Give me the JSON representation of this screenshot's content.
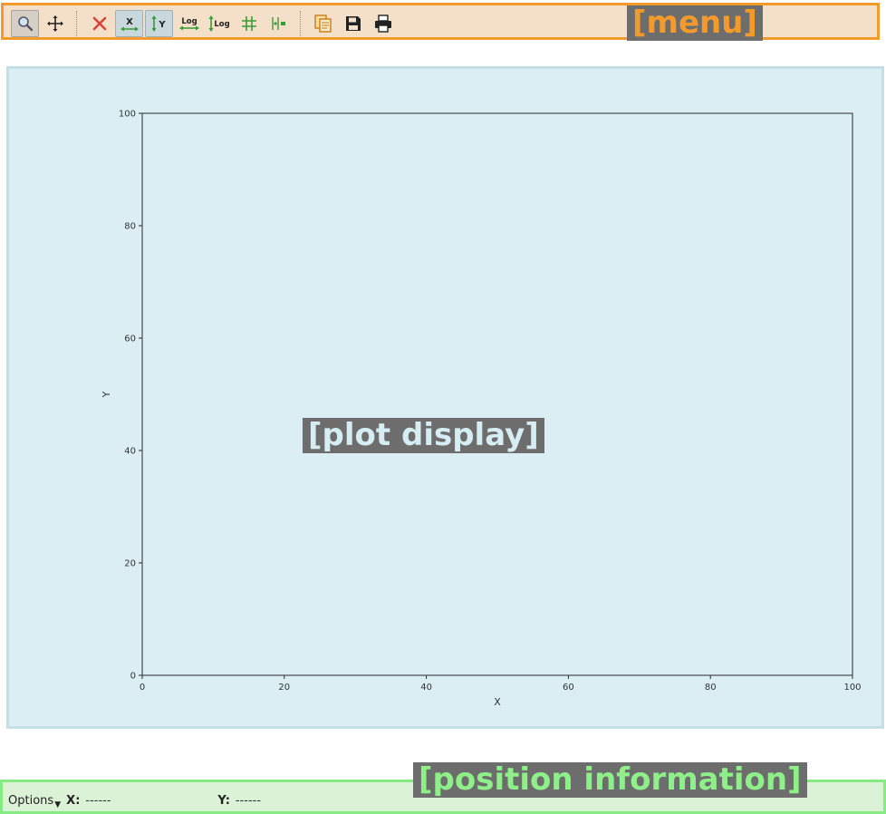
{
  "menu": {
    "overlay_label": "[menu]",
    "tools": [
      {
        "name": "zoom-icon",
        "active": true
      },
      {
        "name": "pan-icon",
        "active": false
      },
      {
        "name": "reset-zoom-icon",
        "active": false
      },
      {
        "name": "autoscale-x-icon",
        "active": true
      },
      {
        "name": "autoscale-y-icon",
        "active": true
      },
      {
        "name": "log-x-icon",
        "active": false
      },
      {
        "name": "log-y-icon",
        "active": false
      },
      {
        "name": "grid-icon",
        "active": false
      },
      {
        "name": "curve-style-icon",
        "active": false
      },
      {
        "name": "copy-icon",
        "active": false
      },
      {
        "name": "save-icon",
        "active": false
      },
      {
        "name": "print-icon",
        "active": false
      }
    ],
    "icon_text": {
      "x": "X",
      "y": "Y",
      "log": "Log"
    }
  },
  "plot": {
    "overlay_label": "[plot display]",
    "colors": {
      "frame": "#2a2a2a",
      "tick_text": "#333333"
    }
  },
  "chart_data": {
    "type": "line",
    "series": [],
    "xlabel": "X",
    "ylabel": "Y",
    "xlim": [
      0,
      100
    ],
    "ylim": [
      0,
      100
    ],
    "xticks": [
      0,
      20,
      40,
      60,
      80,
      100
    ],
    "yticks": [
      0,
      20,
      40,
      60,
      80,
      100
    ],
    "grid": false
  },
  "status": {
    "overlay_label": "[position information]",
    "options_label": "Options",
    "x_key": "X:",
    "x_value": "------",
    "y_key": "Y:",
    "y_value": "------"
  }
}
